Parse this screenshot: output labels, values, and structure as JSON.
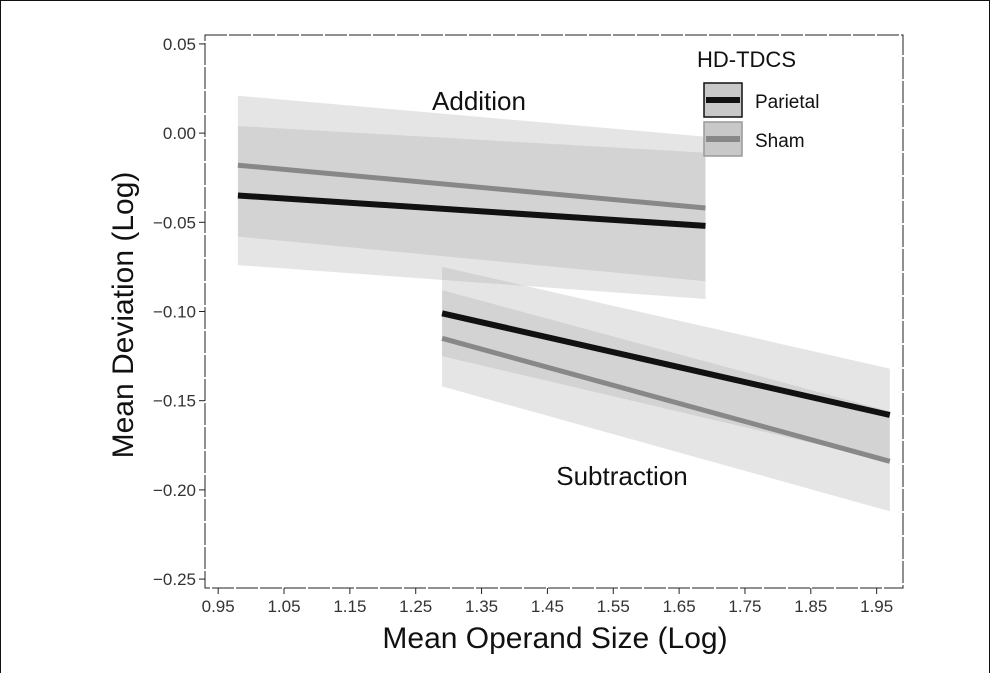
{
  "chart_data": {
    "type": "line",
    "title": "",
    "xlabel": "Mean Operand Size (Log)",
    "ylabel": "Mean Deviation (Log)",
    "xlim": [
      0.93,
      1.99
    ],
    "ylim": [
      -0.255,
      0.055
    ],
    "x_ticks": [
      "0.95",
      "1.05",
      "1.15",
      "1.25",
      "1.35",
      "1.45",
      "1.55",
      "1.65",
      "1.75",
      "1.85",
      "1.95"
    ],
    "y_ticks": [
      "0.05",
      "0.00",
      "−0.05",
      "−0.10",
      "−0.15",
      "−0.20",
      "−0.25"
    ],
    "grid": false,
    "legend": {
      "title": "HD-TDCS",
      "placement": "top-right",
      "entries": [
        {
          "name": "Parietal",
          "color": "#111111"
        },
        {
          "name": "Sham",
          "color": "#888888"
        }
      ]
    },
    "annotations": [
      "Addition",
      "Subtraction"
    ],
    "groups": [
      {
        "label": "Addition",
        "x": [
          0.98,
          1.69
        ],
        "series": [
          {
            "name": "Parietal",
            "y": [
              -0.035,
              -0.052
            ],
            "ci_low": [
              -0.074,
              -0.093
            ],
            "ci_high": [
              0.004,
              -0.011
            ]
          },
          {
            "name": "Sham",
            "y": [
              -0.018,
              -0.042
            ],
            "ci_low": [
              -0.058,
              -0.083
            ],
            "ci_high": [
              0.021,
              -0.002
            ]
          }
        ]
      },
      {
        "label": "Subtraction",
        "x": [
          1.29,
          1.97
        ],
        "series": [
          {
            "name": "Parietal",
            "y": [
              -0.101,
              -0.158
            ],
            "ci_low": [
              -0.125,
              -0.184
            ],
            "ci_high": [
              -0.075,
              -0.132
            ]
          },
          {
            "name": "Sham",
            "y": [
              -0.115,
              -0.184
            ],
            "ci_low": [
              -0.142,
              -0.212
            ],
            "ci_high": [
              -0.088,
              -0.156
            ]
          }
        ]
      }
    ],
    "colors": {
      "parietal_line": "#111111",
      "sham_line": "#888888",
      "band": "#c8c8c8"
    }
  }
}
